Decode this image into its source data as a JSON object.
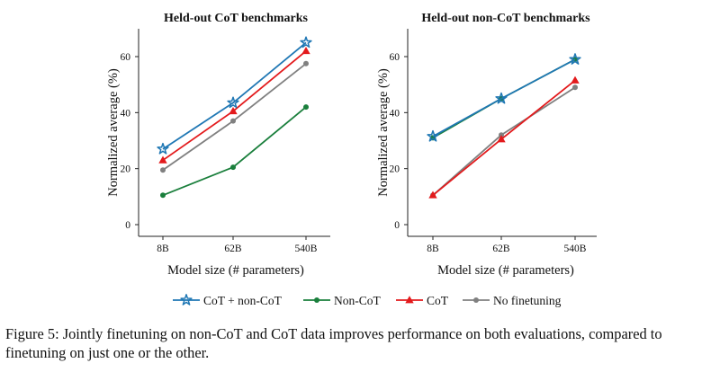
{
  "chart_data": [
    {
      "type": "line",
      "title": "Held-out CoT benchmarks",
      "xlabel": "Model size (# parameters)",
      "ylabel": "Normalized average (%)",
      "categories": [
        "8B",
        "62B",
        "540B"
      ],
      "yticks": [
        0,
        20,
        40,
        60
      ],
      "ylim": [
        -3,
        70
      ],
      "grid": false,
      "series": [
        {
          "name": "CoT + non-CoT",
          "color": "#1f77b4",
          "marker": "star",
          "values": [
            27,
            43.5,
            65
          ]
        },
        {
          "name": "Non-CoT",
          "color": "#1a7f3c",
          "marker": "circle",
          "values": [
            10.5,
            20.5,
            42
          ]
        },
        {
          "name": "CoT",
          "color": "#e31a1c",
          "marker": "triangle",
          "values": [
            23,
            40.5,
            62
          ]
        },
        {
          "name": "No finetuning",
          "color": "#808080",
          "marker": "circle",
          "values": [
            19.5,
            37,
            57.5
          ]
        }
      ]
    },
    {
      "type": "line",
      "title": "Held-out non-CoT benchmarks",
      "xlabel": "Model size (# parameters)",
      "ylabel": "Normalized average (%)",
      "categories": [
        "8B",
        "62B",
        "540B"
      ],
      "yticks": [
        0,
        20,
        40,
        60
      ],
      "ylim": [
        -3,
        70
      ],
      "grid": false,
      "series": [
        {
          "name": "CoT + non-CoT",
          "color": "#1f77b4",
          "marker": "star",
          "values": [
            31.5,
            45,
            59
          ]
        },
        {
          "name": "Non-CoT",
          "color": "#1a7f3c",
          "marker": "circle",
          "values": [
            31,
            45,
            59
          ]
        },
        {
          "name": "CoT",
          "color": "#e31a1c",
          "marker": "triangle",
          "values": [
            10.5,
            30.5,
            51.5
          ]
        },
        {
          "name": "No finetuning",
          "color": "#808080",
          "marker": "circle",
          "values": [
            10.5,
            32,
            49
          ]
        }
      ]
    }
  ],
  "legend": {
    "placement": "bottom-center",
    "items": [
      "CoT + non-CoT",
      "Non-CoT",
      "CoT",
      "No finetuning"
    ]
  },
  "caption": "Figure 5: Jointly finetuning on non-CoT and CoT data improves performance on both evaluations, compared to finetuning on just one or the other."
}
